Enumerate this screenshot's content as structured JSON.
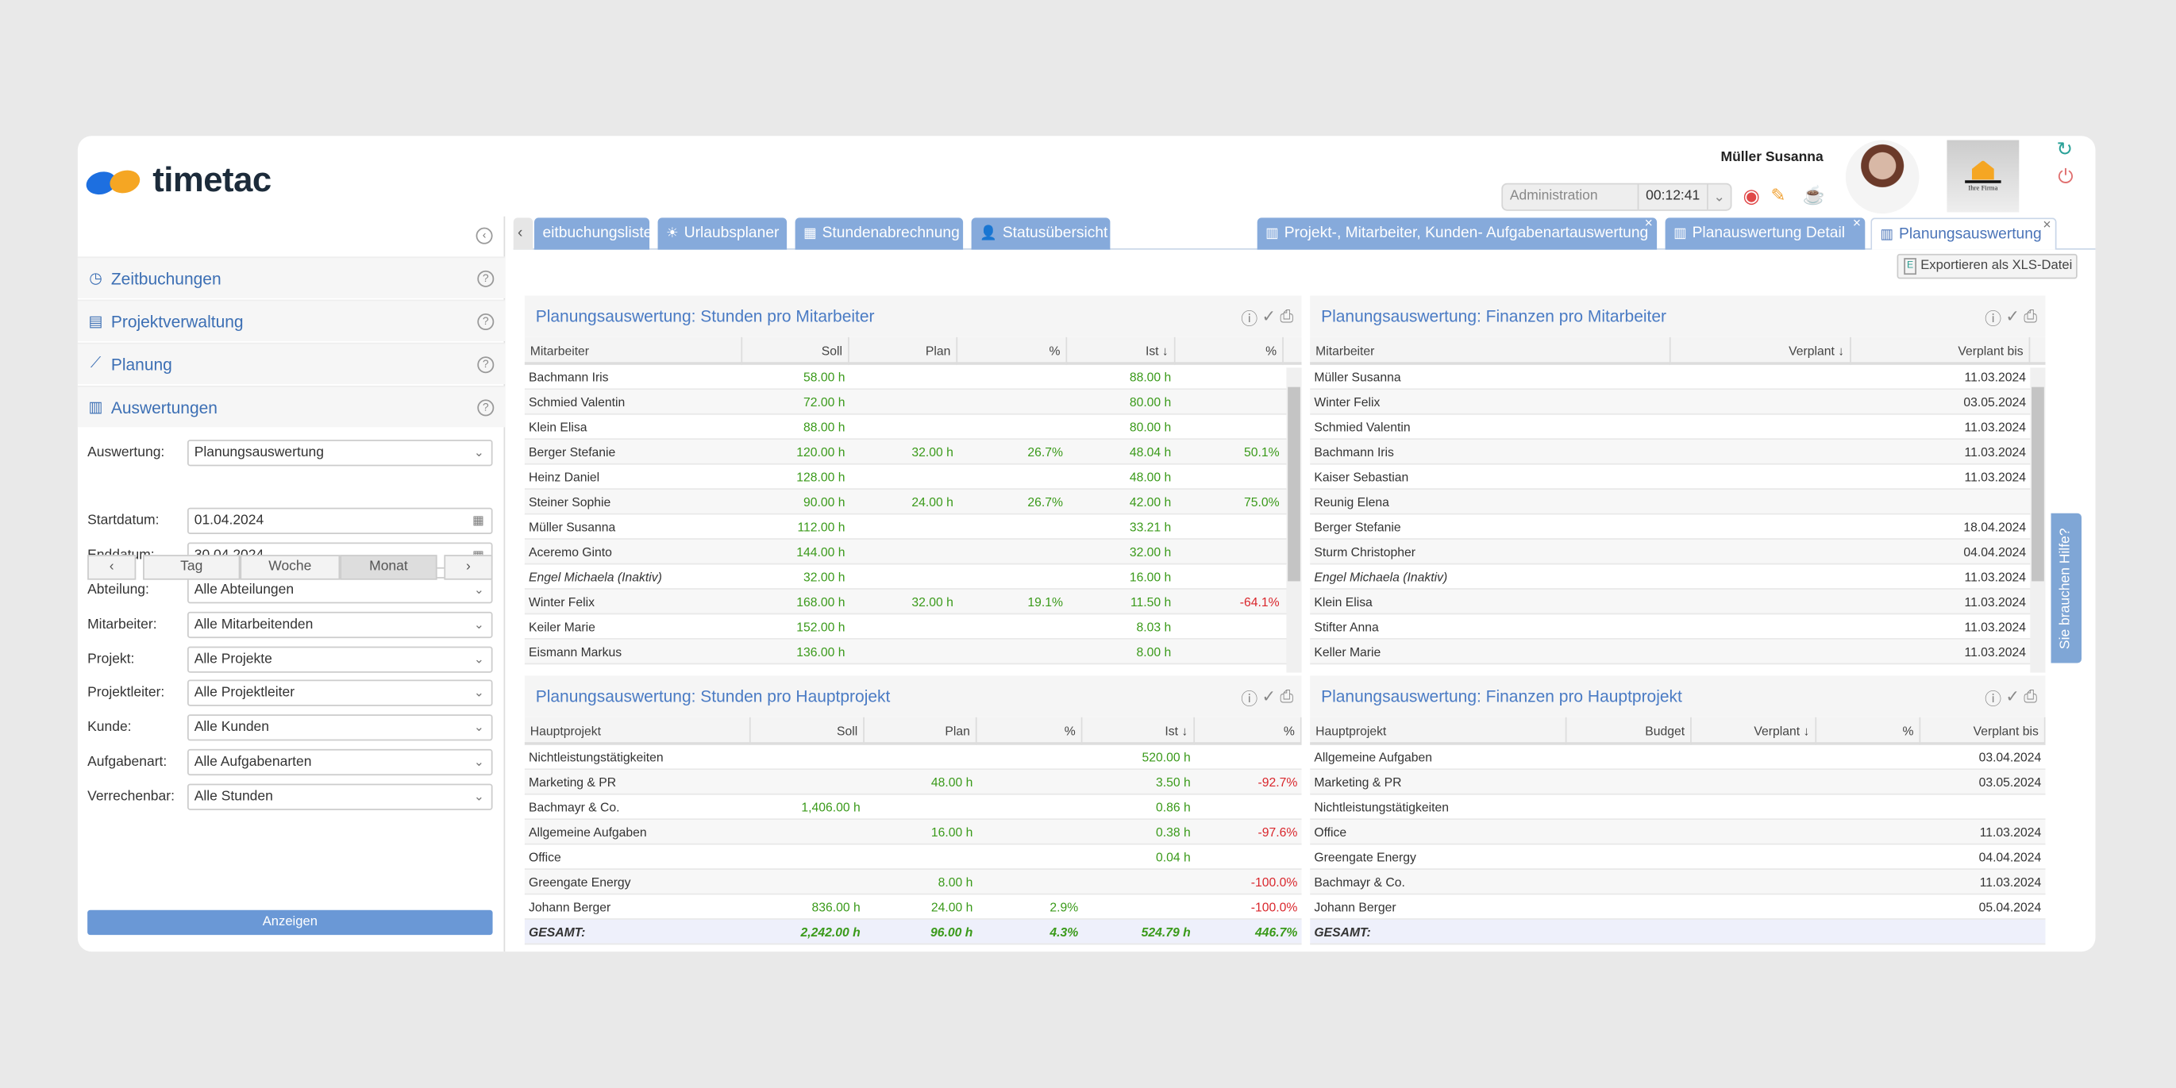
{
  "app": {
    "logo": "timetac",
    "user_name": "Müller Susanna",
    "activity": "Administration",
    "timer": "00:12:41",
    "company_logo_text": "Ihre Firma"
  },
  "sidebar": {
    "menu": [
      {
        "label": "Zeitbuchungen",
        "icon": "clock-icon"
      },
      {
        "label": "Projektverwaltung",
        "icon": "clipboard-icon"
      },
      {
        "label": "Planung",
        "icon": "chart-line-icon"
      },
      {
        "label": "Auswertungen",
        "icon": "bar-chart-icon"
      }
    ],
    "period": [
      "Tag",
      "Woche",
      "Monat"
    ],
    "fields": [
      {
        "label": "Auswertung:",
        "value": "Planungsauswertung",
        "type": "select"
      },
      {
        "label": "Startdatum:",
        "value": "01.04.2024",
        "type": "date"
      },
      {
        "label": "Enddatum:",
        "value": "30.04.2024",
        "type": "date"
      },
      {
        "label": "Abteilung:",
        "value": "Alle Abteilungen",
        "type": "select"
      },
      {
        "label": "Mitarbeiter:",
        "value": "Alle Mitarbeitenden",
        "type": "select"
      },
      {
        "label": "Projekt:",
        "value": "Alle Projekte",
        "type": "select"
      },
      {
        "label": "Projektleiter:",
        "value": "Alle Projektleiter",
        "type": "select"
      },
      {
        "label": "Kunde:",
        "value": "Alle Kunden",
        "type": "select"
      },
      {
        "label": "Aufgabenart:",
        "value": "Alle Aufgabenarten",
        "type": "select"
      },
      {
        "label": "Verrechenbar:",
        "value": "Alle Stunden",
        "type": "select"
      }
    ],
    "show_button": "Anzeigen"
  },
  "tabs": {
    "left": [
      {
        "label": "eitbuchungsliste"
      },
      {
        "label": "Urlaubsplaner",
        "icon": "sun-icon"
      },
      {
        "label": "Stundenabrechnung",
        "icon": "calculator-icon"
      },
      {
        "label": "Statusübersicht",
        "icon": "person-icon"
      }
    ],
    "right": [
      {
        "label": "Projekt-, Mitarbeiter, Kunden- Aufgabenartauswertung"
      },
      {
        "label": "Planauswertung Detail"
      },
      {
        "label": "Planungsauswertung",
        "active": true
      }
    ]
  },
  "export_label": "Exportieren als XLS-Datei",
  "help_label": "Sie brauchen Hilfe?",
  "colors": {
    "positive": "#3a9a1a",
    "negative": "#d9262c",
    "accent": "#4a7bc4"
  },
  "panels": [
    {
      "title": "Planungsauswertung: Stunden pro Mitarbeiter",
      "columns": [
        "Mitarbeiter",
        "Soll",
        "Plan",
        "%",
        "Ist ↓",
        "%"
      ],
      "rows": [
        [
          "Bachmann Iris",
          "58.00 h",
          "",
          "",
          "88.00 h",
          ""
        ],
        [
          "Schmied Valentin",
          "72.00 h",
          "",
          "",
          "80.00 h",
          ""
        ],
        [
          "Klein Elisa",
          "88.00 h",
          "",
          "",
          "80.00 h",
          ""
        ],
        [
          "Berger Stefanie",
          "120.00 h",
          "32.00 h",
          "26.7%",
          "48.04 h",
          "50.1%"
        ],
        [
          "Heinz Daniel",
          "128.00 h",
          "",
          "",
          "48.00 h",
          ""
        ],
        [
          "Steiner Sophie",
          "90.00 h",
          "24.00 h",
          "26.7%",
          "42.00 h",
          "75.0%"
        ],
        [
          "Müller Susanna",
          "112.00 h",
          "",
          "",
          "33.21 h",
          ""
        ],
        [
          "Aceremo Ginto",
          "144.00 h",
          "",
          "",
          "32.00 h",
          ""
        ],
        [
          "Engel Michaela (Inaktiv)",
          "32.00 h",
          "",
          "",
          "16.00 h",
          ""
        ],
        [
          "Winter Felix",
          "168.00 h",
          "32.00 h",
          "19.1%",
          "11.50 h",
          "-64.1%"
        ],
        [
          "Keiler Marie",
          "152.00 h",
          "",
          "",
          "8.03 h",
          ""
        ],
        [
          "Eismann Markus",
          "136.00 h",
          "",
          "",
          "8.00 h",
          ""
        ]
      ]
    },
    {
      "title": "Planungsauswertung: Finanzen pro Mitarbeiter",
      "columns": [
        "Mitarbeiter",
        "Verplant ↓",
        "Verplant bis"
      ],
      "rows": [
        [
          "Müller Susanna",
          "",
          "11.03.2024"
        ],
        [
          "Winter Felix",
          "",
          "03.05.2024"
        ],
        [
          "Schmied Valentin",
          "",
          "11.03.2024"
        ],
        [
          "Bachmann Iris",
          "",
          "11.03.2024"
        ],
        [
          "Kaiser Sebastian",
          "",
          "11.03.2024"
        ],
        [
          "Reunig Elena",
          "",
          ""
        ],
        [
          "Berger Stefanie",
          "",
          "18.04.2024"
        ],
        [
          "Sturm Christopher",
          "",
          "04.04.2024"
        ],
        [
          "Engel Michaela (Inaktiv)",
          "",
          "11.03.2024"
        ],
        [
          "Klein Elisa",
          "",
          "11.03.2024"
        ],
        [
          "Stifter Anna",
          "",
          "11.03.2024"
        ],
        [
          "Keller Marie",
          "",
          "11.03.2024"
        ]
      ]
    },
    {
      "title": "Planungsauswertung: Stunden pro Hauptprojekt",
      "columns": [
        "Hauptprojekt",
        "Soll",
        "Plan",
        "%",
        "Ist ↓",
        "%"
      ],
      "rows": [
        [
          "Nichtleistungstätigkeiten",
          "",
          "",
          "",
          "520.00 h",
          ""
        ],
        [
          "Marketing & PR",
          "",
          "48.00 h",
          "",
          "3.50 h",
          "-92.7%"
        ],
        [
          "Bachmayr & Co.",
          "1,406.00 h",
          "",
          "",
          "0.86 h",
          ""
        ],
        [
          "Allgemeine Aufgaben",
          "",
          "16.00 h",
          "",
          "0.38 h",
          "-97.6%"
        ],
        [
          "Office",
          "",
          "",
          "",
          "0.04 h",
          ""
        ],
        [
          "Greengate Energy",
          "",
          "8.00 h",
          "",
          "",
          "-100.0%"
        ],
        [
          "Johann Berger",
          "836.00 h",
          "24.00 h",
          "2.9%",
          "",
          "-100.0%"
        ]
      ],
      "total": [
        "GESAMT:",
        "2,242.00 h",
        "96.00 h",
        "4.3%",
        "524.79 h",
        "446.7%"
      ]
    },
    {
      "title": "Planungsauswertung: Finanzen pro Hauptprojekt",
      "columns": [
        "Hauptprojekt",
        "Budget",
        "Verplant ↓",
        "%",
        "Verplant bis"
      ],
      "rows": [
        [
          "Allgemeine Aufgaben",
          "",
          "",
          "",
          "03.04.2024"
        ],
        [
          "Marketing & PR",
          "",
          "",
          "",
          "03.05.2024"
        ],
        [
          "Nichtleistungstätigkeiten",
          "",
          "",
          "",
          ""
        ],
        [
          "Office",
          "",
          "",
          "",
          "11.03.2024"
        ],
        [
          "Greengate Energy",
          "",
          "",
          "",
          "04.04.2024"
        ],
        [
          "Bachmayr & Co.",
          "",
          "",
          "",
          "11.03.2024"
        ],
        [
          "Johann Berger",
          "",
          "",
          "",
          "05.04.2024"
        ]
      ],
      "total": [
        "GESAMT:",
        "",
        "",
        "",
        ""
      ]
    }
  ]
}
